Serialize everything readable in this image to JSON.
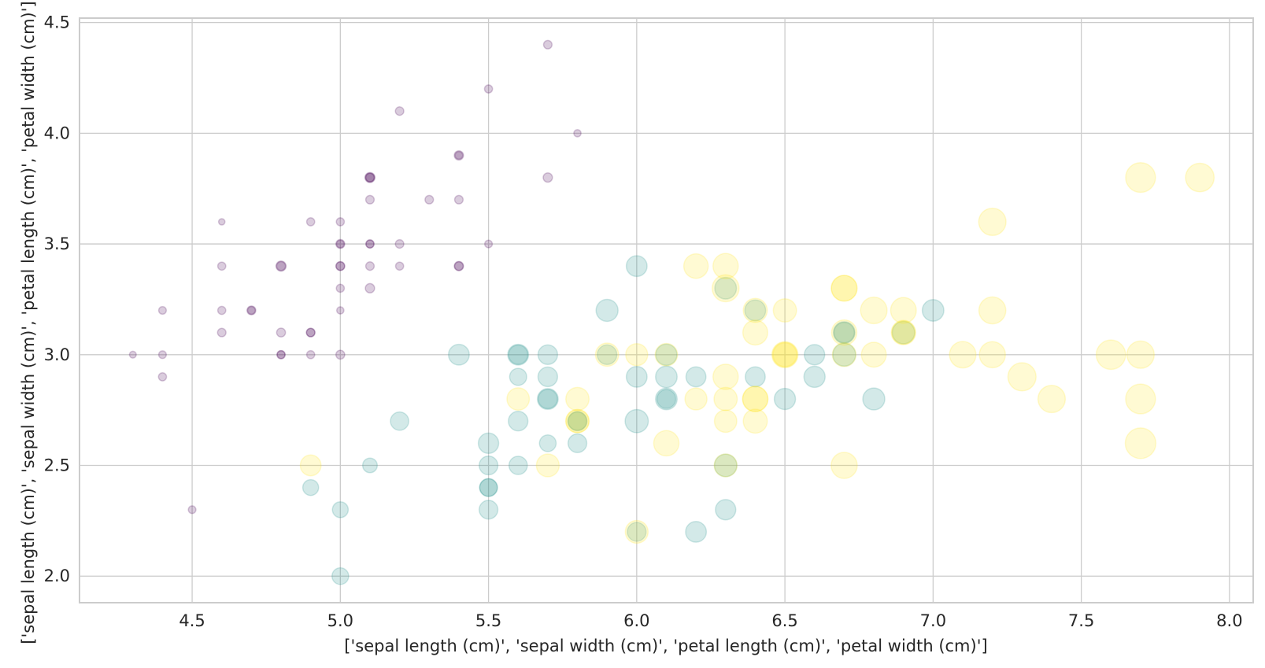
{
  "chart_data": {
    "type": "scatter",
    "xlabel": "['sepal length (cm)', 'sepal width (cm)', 'petal length (cm)', 'petal width (cm)']",
    "ylabel": "['sepal length (cm)', 'sepal width (cm)', 'petal length (cm)', 'petal width (cm)']",
    "xlim": [
      4.12,
      8.08
    ],
    "ylim": [
      1.88,
      4.52
    ],
    "xticks": [
      "4.5",
      "5.0",
      "5.5",
      "6.0",
      "6.5",
      "7.0",
      "7.5",
      "8.0"
    ],
    "yticks": [
      "2.0",
      "2.5",
      "3.0",
      "3.5",
      "4.0",
      "4.5"
    ],
    "grid": true,
    "marker_alpha": 0.2,
    "size_encodes": "petal length (cm)",
    "color_encodes": "class",
    "class_colors": [
      "#440154",
      "#21918c",
      "#fde725"
    ],
    "point_fields": [
      "sepal_length",
      "sepal_width",
      "petal_length",
      "class"
    ],
    "points": [
      [
        5.1,
        3.5,
        1.4,
        0
      ],
      [
        4.9,
        3.0,
        1.4,
        0
      ],
      [
        4.7,
        3.2,
        1.3,
        0
      ],
      [
        4.6,
        3.1,
        1.5,
        0
      ],
      [
        5.0,
        3.6,
        1.4,
        0
      ],
      [
        5.4,
        3.9,
        1.7,
        0
      ],
      [
        4.6,
        3.4,
        1.4,
        0
      ],
      [
        5.0,
        3.4,
        1.5,
        0
      ],
      [
        4.4,
        2.9,
        1.4,
        0
      ],
      [
        4.9,
        3.1,
        1.5,
        0
      ],
      [
        5.4,
        3.7,
        1.5,
        0
      ],
      [
        4.8,
        3.4,
        1.6,
        0
      ],
      [
        4.8,
        3.0,
        1.4,
        0
      ],
      [
        4.3,
        3.0,
        1.1,
        0
      ],
      [
        5.8,
        4.0,
        1.2,
        0
      ],
      [
        5.7,
        4.4,
        1.5,
        0
      ],
      [
        5.4,
        3.9,
        1.3,
        0
      ],
      [
        5.1,
        3.5,
        1.4,
        0
      ],
      [
        5.7,
        3.8,
        1.7,
        0
      ],
      [
        5.1,
        3.8,
        1.5,
        0
      ],
      [
        5.4,
        3.4,
        1.7,
        0
      ],
      [
        5.1,
        3.7,
        1.5,
        0
      ],
      [
        4.6,
        3.6,
        1.0,
        0
      ],
      [
        5.1,
        3.3,
        1.7,
        0
      ],
      [
        4.8,
        3.4,
        1.9,
        0
      ],
      [
        5.0,
        3.0,
        1.6,
        0
      ],
      [
        5.0,
        3.4,
        1.6,
        0
      ],
      [
        5.2,
        3.5,
        1.5,
        0
      ],
      [
        5.2,
        3.4,
        1.4,
        0
      ],
      [
        4.7,
        3.2,
        1.6,
        0
      ],
      [
        4.8,
        3.1,
        1.6,
        0
      ],
      [
        5.4,
        3.4,
        1.5,
        0
      ],
      [
        5.2,
        4.1,
        1.5,
        0
      ],
      [
        5.5,
        4.2,
        1.4,
        0
      ],
      [
        4.9,
        3.1,
        1.5,
        0
      ],
      [
        5.0,
        3.2,
        1.2,
        0
      ],
      [
        5.5,
        3.5,
        1.3,
        0
      ],
      [
        4.9,
        3.6,
        1.4,
        0
      ],
      [
        4.4,
        3.0,
        1.3,
        0
      ],
      [
        5.1,
        3.4,
        1.5,
        0
      ],
      [
        5.0,
        3.5,
        1.3,
        0
      ],
      [
        4.5,
        2.3,
        1.3,
        0
      ],
      [
        4.4,
        3.2,
        1.3,
        0
      ],
      [
        5.0,
        3.5,
        1.6,
        0
      ],
      [
        5.1,
        3.8,
        1.9,
        0
      ],
      [
        4.8,
        3.0,
        1.4,
        0
      ],
      [
        5.1,
        3.8,
        1.6,
        0
      ],
      [
        4.6,
        3.2,
        1.4,
        0
      ],
      [
        5.3,
        3.7,
        1.5,
        0
      ],
      [
        5.0,
        3.3,
        1.4,
        0
      ],
      [
        7.0,
        3.2,
        4.7,
        1
      ],
      [
        6.4,
        3.2,
        4.5,
        1
      ],
      [
        6.9,
        3.1,
        4.9,
        1
      ],
      [
        5.5,
        2.3,
        4.0,
        1
      ],
      [
        6.5,
        2.8,
        4.6,
        1
      ],
      [
        5.7,
        2.8,
        4.5,
        1
      ],
      [
        6.3,
        3.3,
        4.7,
        1
      ],
      [
        4.9,
        2.4,
        3.3,
        1
      ],
      [
        6.6,
        2.9,
        4.6,
        1
      ],
      [
        5.2,
        2.7,
        3.9,
        1
      ],
      [
        5.0,
        2.0,
        3.5,
        1
      ],
      [
        5.9,
        3.0,
        4.2,
        1
      ],
      [
        6.0,
        2.2,
        4.0,
        1
      ],
      [
        6.1,
        2.9,
        4.7,
        1
      ],
      [
        5.6,
        2.9,
        3.6,
        1
      ],
      [
        6.7,
        3.1,
        4.4,
        1
      ],
      [
        5.6,
        3.0,
        4.5,
        1
      ],
      [
        5.8,
        2.7,
        4.1,
        1
      ],
      [
        6.2,
        2.2,
        4.5,
        1
      ],
      [
        5.6,
        2.5,
        3.9,
        1
      ],
      [
        5.9,
        3.2,
        4.8,
        1
      ],
      [
        6.1,
        2.8,
        4.0,
        1
      ],
      [
        6.3,
        2.5,
        4.9,
        1
      ],
      [
        6.1,
        2.8,
        4.7,
        1
      ],
      [
        6.4,
        2.9,
        4.3,
        1
      ],
      [
        6.6,
        3.0,
        4.4,
        1
      ],
      [
        6.8,
        2.8,
        4.8,
        1
      ],
      [
        6.7,
        3.0,
        5.0,
        1
      ],
      [
        6.0,
        2.9,
        4.5,
        1
      ],
      [
        5.7,
        2.6,
        3.5,
        1
      ],
      [
        5.5,
        2.4,
        3.8,
        1
      ],
      [
        5.5,
        2.4,
        3.7,
        1
      ],
      [
        5.8,
        2.7,
        3.9,
        1
      ],
      [
        6.0,
        2.7,
        5.1,
        1
      ],
      [
        5.4,
        3.0,
        4.5,
        1
      ],
      [
        6.0,
        3.4,
        4.5,
        1
      ],
      [
        6.7,
        3.1,
        4.7,
        1
      ],
      [
        6.3,
        2.3,
        4.4,
        1
      ],
      [
        5.6,
        3.0,
        4.1,
        1
      ],
      [
        5.5,
        2.5,
        4.0,
        1
      ],
      [
        5.5,
        2.6,
        4.4,
        1
      ],
      [
        6.1,
        3.0,
        4.6,
        1
      ],
      [
        5.8,
        2.6,
        4.0,
        1
      ],
      [
        5.0,
        2.3,
        3.3,
        1
      ],
      [
        5.6,
        2.7,
        4.2,
        1
      ],
      [
        5.7,
        3.0,
        4.2,
        1
      ],
      [
        5.7,
        2.9,
        4.2,
        1
      ],
      [
        6.2,
        2.9,
        4.3,
        1
      ],
      [
        5.1,
        2.5,
        3.0,
        1
      ],
      [
        5.7,
        2.8,
        4.1,
        1
      ],
      [
        6.3,
        3.3,
        6.0,
        2
      ],
      [
        5.8,
        2.7,
        5.1,
        2
      ],
      [
        7.1,
        3.0,
        5.9,
        2
      ],
      [
        6.3,
        2.9,
        5.6,
        2
      ],
      [
        6.5,
        3.0,
        5.8,
        2
      ],
      [
        7.6,
        3.0,
        6.6,
        2
      ],
      [
        4.9,
        2.5,
        4.5,
        2
      ],
      [
        7.3,
        2.9,
        6.3,
        2
      ],
      [
        6.7,
        2.5,
        5.8,
        2
      ],
      [
        7.2,
        3.6,
        6.1,
        2
      ],
      [
        6.5,
        3.2,
        5.1,
        2
      ],
      [
        6.4,
        2.7,
        5.3,
        2
      ],
      [
        6.8,
        3.0,
        5.5,
        2
      ],
      [
        5.7,
        2.5,
        5.0,
        2
      ],
      [
        5.8,
        2.8,
        5.1,
        2
      ],
      [
        6.4,
        3.2,
        5.3,
        2
      ],
      [
        6.5,
        3.0,
        5.5,
        2
      ],
      [
        7.7,
        3.8,
        6.7,
        2
      ],
      [
        7.7,
        2.6,
        6.9,
        2
      ],
      [
        6.0,
        2.2,
        5.0,
        2
      ],
      [
        6.9,
        3.2,
        5.7,
        2
      ],
      [
        5.6,
        2.8,
        4.9,
        2
      ],
      [
        7.7,
        2.8,
        6.7,
        2
      ],
      [
        6.3,
        2.7,
        4.9,
        2
      ],
      [
        6.7,
        3.3,
        5.7,
        2
      ],
      [
        7.2,
        3.2,
        6.0,
        2
      ],
      [
        6.2,
        2.8,
        4.8,
        2
      ],
      [
        6.1,
        3.0,
        4.9,
        2
      ],
      [
        6.4,
        2.8,
        5.6,
        2
      ],
      [
        7.2,
        3.0,
        5.8,
        2
      ],
      [
        7.4,
        2.8,
        6.1,
        2
      ],
      [
        7.9,
        3.8,
        6.4,
        2
      ],
      [
        6.4,
        2.8,
        5.6,
        2
      ],
      [
        6.3,
        2.8,
        5.1,
        2
      ],
      [
        6.1,
        2.6,
        5.6,
        2
      ],
      [
        7.7,
        3.0,
        6.1,
        2
      ],
      [
        6.3,
        3.4,
        5.6,
        2
      ],
      [
        6.4,
        3.1,
        5.5,
        2
      ],
      [
        6.0,
        3.0,
        4.8,
        2
      ],
      [
        6.9,
        3.1,
        5.4,
        2
      ],
      [
        6.7,
        3.1,
        5.6,
        2
      ],
      [
        6.9,
        3.1,
        5.1,
        2
      ],
      [
        5.8,
        2.7,
        5.1,
        2
      ],
      [
        6.8,
        3.2,
        5.9,
        2
      ],
      [
        6.7,
        3.3,
        5.7,
        2
      ],
      [
        6.7,
        3.0,
        5.2,
        2
      ],
      [
        6.3,
        2.5,
        5.0,
        2
      ],
      [
        6.5,
        3.0,
        5.2,
        2
      ],
      [
        6.2,
        3.4,
        5.4,
        2
      ],
      [
        5.9,
        3.0,
        5.1,
        2
      ]
    ]
  }
}
